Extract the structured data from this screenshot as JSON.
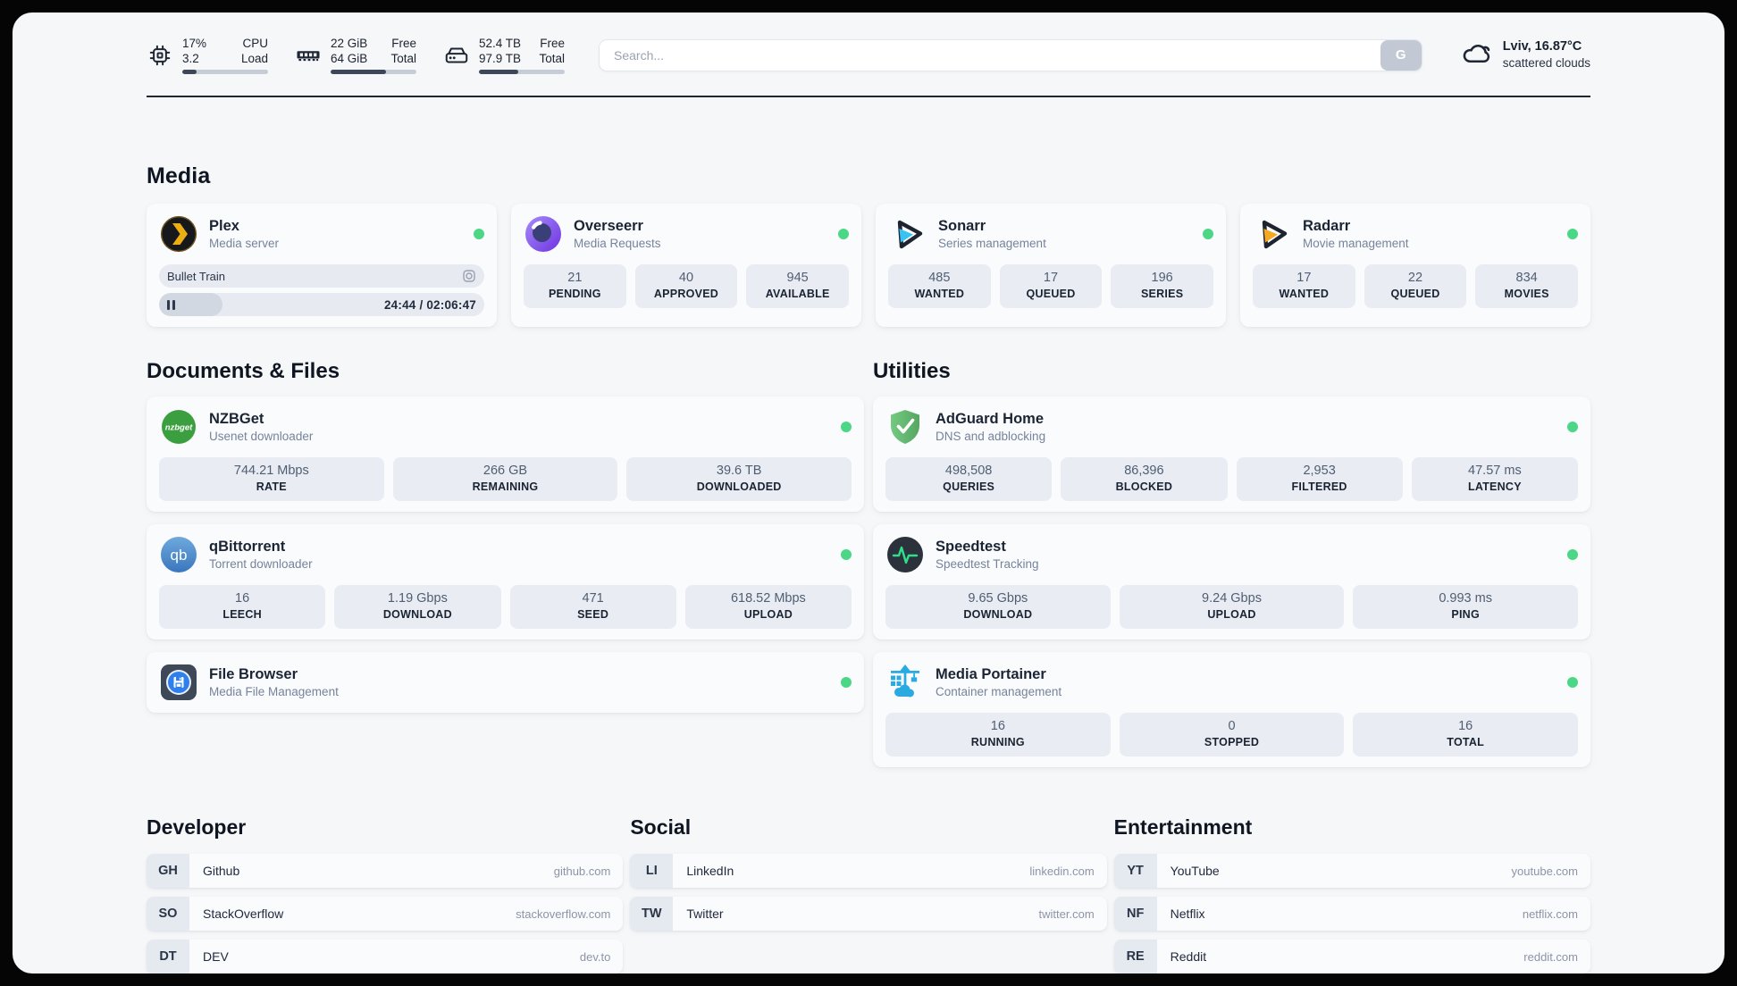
{
  "colors": {
    "status_online": "#4cd787",
    "plex_accent": "#ebaf13",
    "overseerr_purple": "#7c4dff",
    "sonarr_accent": "#36c3f1",
    "radarr_accent": "#f6a821",
    "nzbget_green": "#3c9f3f",
    "qbittorrent_blue": "#4a84c7",
    "filebrowser_blue": "#2f80ed",
    "adguard_green": "#5fae6c",
    "speedtest_pulse": "#2ee08b",
    "portainer_blue": "#29abe2"
  },
  "topbar": {
    "cpu": {
      "value_top": "17%",
      "value_bottom": "3.2",
      "label_top": "CPU",
      "label_bottom": "Load",
      "progress": 17
    },
    "memory": {
      "value_top": "22 GiB",
      "value_bottom": "64 GiB",
      "label_top": "Free",
      "label_bottom": "Total",
      "progress": 65
    },
    "storage": {
      "value_top": "52.4 TB",
      "value_bottom": "97.9 TB",
      "label_top": "Free",
      "label_bottom": "Total",
      "progress": 46
    },
    "search": {
      "placeholder": "Search...",
      "button_label": "G"
    },
    "weather": {
      "location_temp": "Lviv, 16.87°C",
      "condition": "scattered clouds"
    }
  },
  "media": {
    "title": "Media",
    "plex": {
      "name": "Plex",
      "desc": "Media server",
      "now_playing": "Bullet Train",
      "elapsed_total": "24:44 / 02:06:47",
      "progress": 19.5
    },
    "overseerr": {
      "name": "Overseerr",
      "desc": "Media Requests",
      "stats": [
        {
          "value": "21",
          "label": "PENDING"
        },
        {
          "value": "40",
          "label": "APPROVED"
        },
        {
          "value": "945",
          "label": "AVAILABLE"
        }
      ]
    },
    "sonarr": {
      "name": "Sonarr",
      "desc": "Series management",
      "stats": [
        {
          "value": "485",
          "label": "WANTED"
        },
        {
          "value": "17",
          "label": "QUEUED"
        },
        {
          "value": "196",
          "label": "SERIES"
        }
      ]
    },
    "radarr": {
      "name": "Radarr",
      "desc": "Movie management",
      "stats": [
        {
          "value": "17",
          "label": "WANTED"
        },
        {
          "value": "22",
          "label": "QUEUED"
        },
        {
          "value": "834",
          "label": "MOVIES"
        }
      ]
    }
  },
  "documents": {
    "title": "Documents & Files",
    "nzbget": {
      "name": "NZBGet",
      "desc": "Usenet downloader",
      "stats": [
        {
          "value": "744.21 Mbps",
          "label": "RATE"
        },
        {
          "value": "266 GB",
          "label": "REMAINING"
        },
        {
          "value": "39.6 TB",
          "label": "DOWNLOADED"
        }
      ]
    },
    "qbittorrent": {
      "name": "qBittorrent",
      "desc": "Torrent downloader",
      "stats": [
        {
          "value": "16",
          "label": "LEECH"
        },
        {
          "value": "1.19 Gbps",
          "label": "DOWNLOAD"
        },
        {
          "value": "471",
          "label": "SEED"
        },
        {
          "value": "618.52 Mbps",
          "label": "UPLOAD"
        }
      ]
    },
    "filebrowser": {
      "name": "File Browser",
      "desc": "Media File Management"
    }
  },
  "utilities": {
    "title": "Utilities",
    "adguard": {
      "name": "AdGuard Home",
      "desc": "DNS and adblocking",
      "stats": [
        {
          "value": "498,508",
          "label": "QUERIES"
        },
        {
          "value": "86,396",
          "label": "BLOCKED"
        },
        {
          "value": "2,953",
          "label": "FILTERED"
        },
        {
          "value": "47.57 ms",
          "label": "LATENCY"
        }
      ]
    },
    "speedtest": {
      "name": "Speedtest",
      "desc": "Speedtest Tracking",
      "stats": [
        {
          "value": "9.65 Gbps",
          "label": "DOWNLOAD"
        },
        {
          "value": "9.24 Gbps",
          "label": "UPLOAD"
        },
        {
          "value": "0.993 ms",
          "label": "PING"
        }
      ]
    },
    "portainer": {
      "name": "Media Portainer",
      "desc": "Container management",
      "stats": [
        {
          "value": "16",
          "label": "RUNNING"
        },
        {
          "value": "0",
          "label": "STOPPED"
        },
        {
          "value": "16",
          "label": "TOTAL"
        }
      ]
    }
  },
  "links": {
    "developer": {
      "title": "Developer",
      "items": [
        {
          "abbr": "GH",
          "name": "Github",
          "url": "github.com"
        },
        {
          "abbr": "SO",
          "name": "StackOverflow",
          "url": "stackoverflow.com"
        },
        {
          "abbr": "DT",
          "name": "DEV",
          "url": "dev.to"
        }
      ]
    },
    "social": {
      "title": "Social",
      "items": [
        {
          "abbr": "LI",
          "name": "LinkedIn",
          "url": "linkedin.com"
        },
        {
          "abbr": "TW",
          "name": "Twitter",
          "url": "twitter.com"
        }
      ]
    },
    "entertainment": {
      "title": "Entertainment",
      "items": [
        {
          "abbr": "YT",
          "name": "YouTube",
          "url": "youtube.com"
        },
        {
          "abbr": "NF",
          "name": "Netflix",
          "url": "netflix.com"
        },
        {
          "abbr": "RE",
          "name": "Reddit",
          "url": "reddit.com"
        }
      ]
    }
  }
}
